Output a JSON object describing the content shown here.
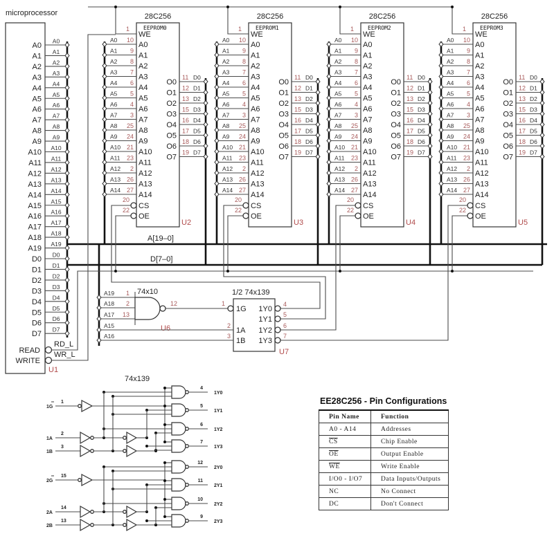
{
  "microprocessor": {
    "title": "microprocessor",
    "ref": "U1",
    "pins": [
      "A0",
      "A1",
      "A2",
      "A3",
      "A4",
      "A5",
      "A6",
      "A7",
      "A8",
      "A9",
      "A10",
      "A11",
      "A12",
      "A13",
      "A14",
      "A15",
      "A16",
      "A17",
      "A18",
      "A19",
      "D0",
      "D1",
      "D2",
      "D3",
      "D4",
      "D5",
      "D6",
      "D7"
    ],
    "read": "READ",
    "write": "WRITE",
    "rd_net": "RD_L",
    "wr_net": "WR_L"
  },
  "eeproms": [
    {
      "part": "28C256",
      "name": "EEPROM0",
      "ref": "U2"
    },
    {
      "part": "28C256",
      "name": "EEPROM1",
      "ref": "U3"
    },
    {
      "part": "28C256",
      "name": "EEPROM2",
      "ref": "U4"
    },
    {
      "part": "28C256",
      "name": "EEPROM3",
      "ref": "U5"
    }
  ],
  "eeprom_pins": {
    "we": {
      "name": "WE",
      "num": "1"
    },
    "addr": [
      {
        "name": "A0",
        "num": "10"
      },
      {
        "name": "A1",
        "num": "9"
      },
      {
        "name": "A2",
        "num": "8"
      },
      {
        "name": "A3",
        "num": "7"
      },
      {
        "name": "A4",
        "num": "6"
      },
      {
        "name": "A5",
        "num": "5"
      },
      {
        "name": "A6",
        "num": "4"
      },
      {
        "name": "A7",
        "num": "3"
      },
      {
        "name": "A8",
        "num": "25"
      },
      {
        "name": "A9",
        "num": "24"
      },
      {
        "name": "A10",
        "num": "21"
      },
      {
        "name": "A11",
        "num": "23"
      },
      {
        "name": "A12",
        "num": "2"
      },
      {
        "name": "A13",
        "num": "26"
      },
      {
        "name": "A14",
        "num": "27"
      }
    ],
    "cs": {
      "name": "CS",
      "num": "20"
    },
    "oe": {
      "name": "OE",
      "num": "22"
    },
    "outputs": [
      {
        "name": "O0",
        "num": "11",
        "net": "D0"
      },
      {
        "name": "O1",
        "num": "12",
        "net": "D1"
      },
      {
        "name": "O2",
        "num": "13",
        "net": "D2"
      },
      {
        "name": "O3",
        "num": "15",
        "net": "D3"
      },
      {
        "name": "O4",
        "num": "16",
        "net": "D4"
      },
      {
        "name": "O5",
        "num": "17",
        "net": "D5"
      },
      {
        "name": "O6",
        "num": "18",
        "net": "D6"
      },
      {
        "name": "O7",
        "num": "19",
        "net": "D7"
      }
    ]
  },
  "buses": {
    "address": "A[19–0]",
    "data": "D[7–0]"
  },
  "nand": {
    "part": "74x10",
    "ref": "U6",
    "inputs": [
      {
        "net": "A19",
        "pin": "1"
      },
      {
        "net": "A18",
        "pin": "2"
      },
      {
        "net": "A17",
        "pin": "13"
      }
    ],
    "output_pin": "12"
  },
  "decoder": {
    "part": "1/2 74x139",
    "ref": "U7",
    "inputs": [
      {
        "name": "1G",
        "pin": "1"
      },
      {
        "name": "1A",
        "pin": "2",
        "net": "A15"
      },
      {
        "name": "1B",
        "pin": "3",
        "net": "A16"
      }
    ],
    "outputs": [
      {
        "name": "1Y0",
        "pin": "4"
      },
      {
        "name": "1Y1",
        "pin": "5"
      },
      {
        "name": "1Y2",
        "pin": "6"
      },
      {
        "name": "1Y3",
        "pin": "7"
      }
    ]
  },
  "logic_diagram": {
    "title": "74x139",
    "groups": [
      {
        "g": {
          "label": "1G",
          "pin": "1"
        },
        "a": {
          "label": "1A",
          "pin": "2"
        },
        "b": {
          "label": "1B",
          "pin": "3"
        },
        "outputs": [
          {
            "label": "1Y0",
            "pin": "4"
          },
          {
            "label": "1Y1",
            "pin": "5"
          },
          {
            "label": "1Y2",
            "pin": "6"
          },
          {
            "label": "1Y3",
            "pin": "7"
          }
        ]
      },
      {
        "g": {
          "label": "2G",
          "pin": "15"
        },
        "a": {
          "label": "2A",
          "pin": "14"
        },
        "b": {
          "label": "2B",
          "pin": "13"
        },
        "outputs": [
          {
            "label": "2Y0",
            "pin": "12"
          },
          {
            "label": "2Y1",
            "pin": "11"
          },
          {
            "label": "2Y2",
            "pin": "10"
          },
          {
            "label": "2Y3",
            "pin": "9"
          }
        ]
      }
    ]
  },
  "pin_table": {
    "title": "EE28C256 - Pin Configurations",
    "headers": [
      "Pin Name",
      "Function"
    ],
    "rows": [
      {
        "pin": "A0 - A14",
        "function": "Addresses",
        "active_low": false
      },
      {
        "pin": "CS",
        "function": "Chip Enable",
        "active_low": true
      },
      {
        "pin": "OE",
        "function": "Output Enable",
        "active_low": true
      },
      {
        "pin": "WE",
        "function": "Write Enable",
        "active_low": true
      },
      {
        "pin": "I/O0 - I/O7",
        "function": "Data Inputs/Outputs",
        "active_low": false
      },
      {
        "pin": "NC",
        "function": "No Connect",
        "active_low": false
      },
      {
        "pin": "DC",
        "function": "Don't Connect",
        "active_low": false
      }
    ]
  }
}
